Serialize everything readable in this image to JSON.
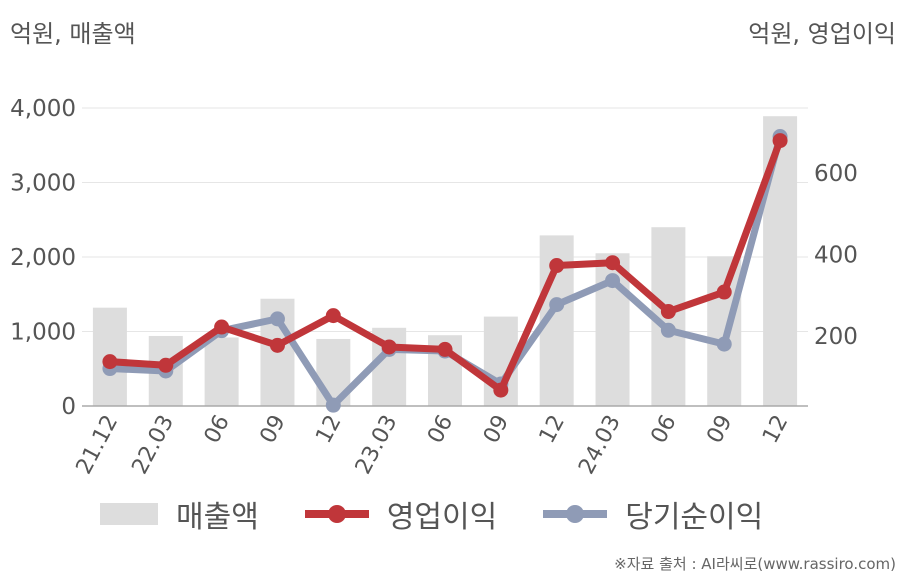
{
  "chart_data": {
    "type": "bar+line",
    "categories": [
      "21.12",
      "22.03",
      "06",
      "09",
      "12",
      "23.03",
      "06",
      "09",
      "12",
      "24.03",
      "06",
      "09",
      "12"
    ],
    "left_axis": {
      "label": "억원, 매출액",
      "ylim": [
        0,
        4000
      ],
      "ticks": [
        0,
        1000,
        2000,
        3000,
        4000
      ],
      "tick_labels": [
        "0",
        "1,000",
        "2,000",
        "3,000",
        "4,000"
      ]
    },
    "right_axis": {
      "label": "억원, 영업이익",
      "ylim": [
        28,
        760
      ],
      "ticks": [
        200,
        400,
        600
      ],
      "tick_labels": [
        "200",
        "400",
        "600"
      ]
    },
    "series": [
      {
        "name": "매출액",
        "type": "bar",
        "axis": "left",
        "color": "#dddddd",
        "values": [
          1320,
          940,
          920,
          1440,
          900,
          1050,
          950,
          1200,
          2290,
          2050,
          2400,
          2010,
          3890
        ]
      },
      {
        "name": "영업이익",
        "type": "line",
        "axis": "right",
        "color": "#c0363a",
        "values": [
          137,
          128,
          222,
          177,
          250,
          173,
          167,
          67,
          373,
          380,
          260,
          308,
          680
        ]
      },
      {
        "name": "당기순이익",
        "type": "line",
        "axis": "right",
        "color": "#8f9bb6",
        "values": [
          120,
          114,
          213,
          242,
          30,
          167,
          163,
          82,
          277,
          336,
          214,
          180,
          690
        ]
      }
    ],
    "grid": true,
    "legend": "bottom"
  },
  "source_text": "※자료 출처 : AI라씨로(www.rassiro.com)"
}
